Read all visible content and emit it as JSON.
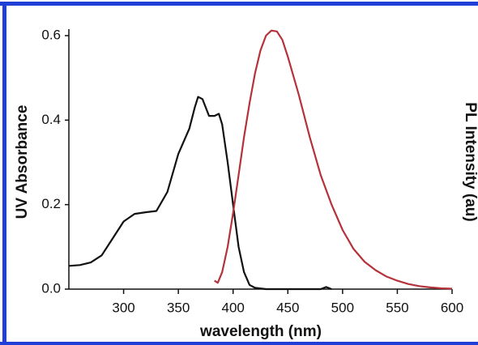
{
  "chart_data": {
    "type": "line",
    "xlabel": "wavelength (nm)",
    "ylabel": "UV Absorbance",
    "y2label": "PL Intensity (au)",
    "xlim": [
      250,
      600
    ],
    "ylim": [
      0,
      0.6
    ],
    "xticks": [
      300,
      350,
      400,
      450,
      500,
      550,
      600
    ],
    "yticks": [
      {
        "value": 0,
        "label": "0.0"
      },
      0.2,
      0.4,
      0.6
    ],
    "series": [
      {
        "color": "#111111",
        "x": [
          250,
          260,
          270,
          280,
          290,
          300,
          310,
          320,
          330,
          340,
          350,
          360,
          365,
          368,
          372,
          378,
          383,
          387,
          390,
          395,
          400,
          405,
          410,
          415,
          420,
          430,
          440,
          480,
          485,
          490
        ],
        "values": [
          0.055,
          0.057,
          0.063,
          0.08,
          0.12,
          0.16,
          0.178,
          0.182,
          0.185,
          0.23,
          0.32,
          0.38,
          0.43,
          0.455,
          0.45,
          0.41,
          0.41,
          0.415,
          0.39,
          0.3,
          0.2,
          0.1,
          0.04,
          0.01,
          0.003,
          0,
          0,
          0,
          0.005,
          0
        ]
      },
      {
        "color": "#b5323a",
        "x": [
          383,
          386,
          390,
          395,
          400,
          405,
          410,
          415,
          420,
          425,
          430,
          435,
          440,
          445,
          450,
          460,
          470,
          480,
          490,
          500,
          510,
          520,
          530,
          540,
          550,
          560,
          570,
          580,
          590,
          600
        ],
        "values": [
          0.02,
          0.015,
          0.04,
          0.1,
          0.18,
          0.27,
          0.36,
          0.44,
          0.51,
          0.565,
          0.6,
          0.612,
          0.61,
          0.59,
          0.55,
          0.46,
          0.36,
          0.27,
          0.2,
          0.14,
          0.095,
          0.065,
          0.045,
          0.03,
          0.02,
          0.012,
          0.007,
          0.004,
          0.002,
          0.001
        ]
      }
    ]
  }
}
